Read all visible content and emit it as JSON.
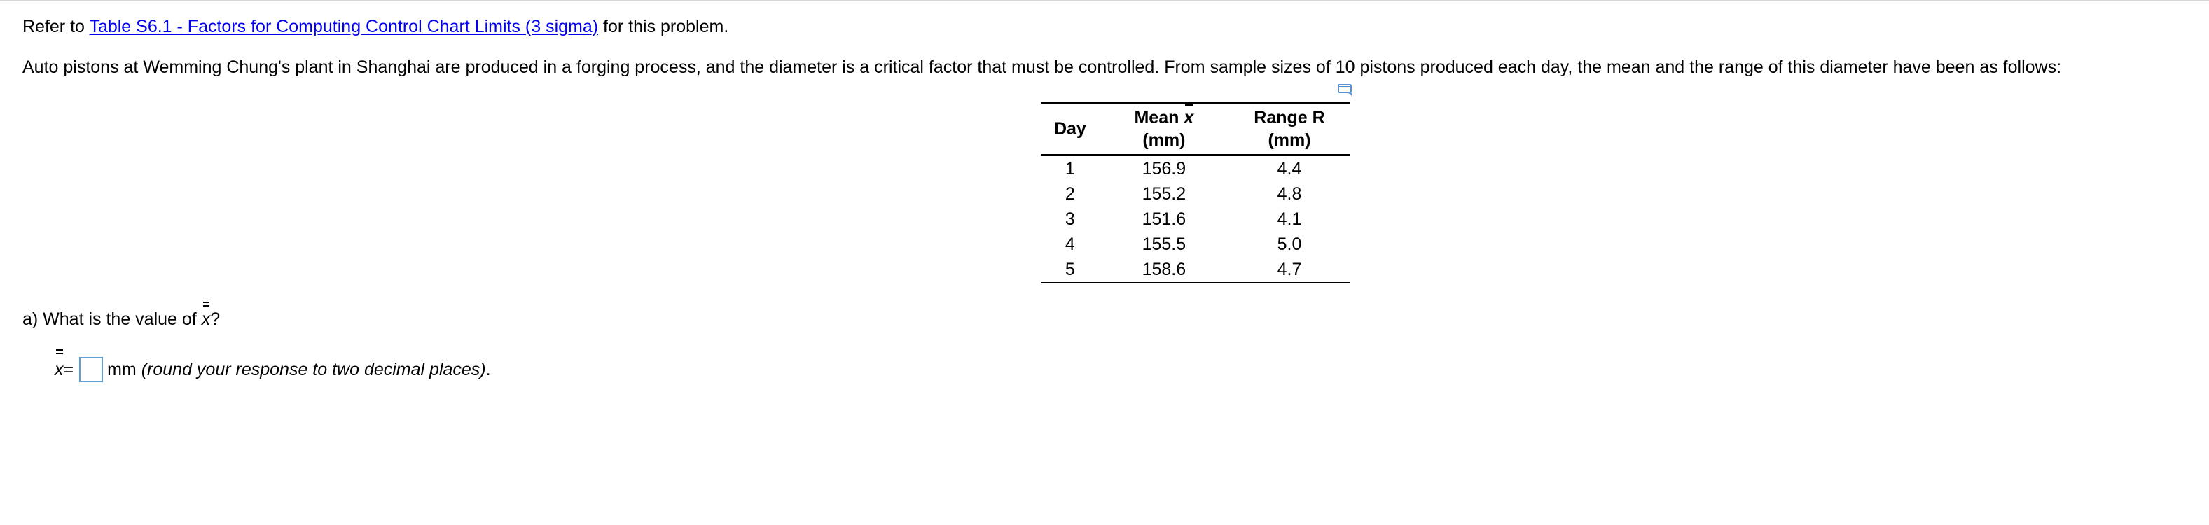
{
  "reference": {
    "prefix": "Refer to ",
    "link_text": "Table S6.1 - Factors for Computing Control Chart Limits (3 sigma)",
    "suffix": " for this problem."
  },
  "intro": "Auto pistons at Wemming Chung's plant in Shanghai are produced in a forging process, and the diameter is a critical factor that must be controlled. From sample sizes of 10 pistons produced each day, the mean and the range of this diameter have been as follows:",
  "table": {
    "headers": {
      "day": "Day",
      "mean_prefix": "Mean ",
      "mean_symbol": "x",
      "mean_unit": "(mm)",
      "range_title": "Range R",
      "range_unit": "(mm)"
    },
    "rows": [
      {
        "day": "1",
        "mean": "156.9",
        "range": "4.4"
      },
      {
        "day": "2",
        "mean": "155.2",
        "range": "4.8"
      },
      {
        "day": "3",
        "mean": "151.6",
        "range": "4.1"
      },
      {
        "day": "4",
        "mean": "155.5",
        "range": "5.0"
      },
      {
        "day": "5",
        "mean": "158.6",
        "range": "4.7"
      }
    ],
    "expand_icon": "expand-table-icon"
  },
  "question_a": {
    "prefix": "a) What is the value of ",
    "symbol": "x",
    "suffix": "?"
  },
  "answer": {
    "symbol": "x",
    "equals": " =",
    "value": "",
    "unit": "mm ",
    "hint": "(round your response to two decimal places)",
    "end": "."
  },
  "colors": {
    "link": "#0000ee",
    "input_border": "#5a9fd4",
    "icon": "#5a8fd0"
  }
}
